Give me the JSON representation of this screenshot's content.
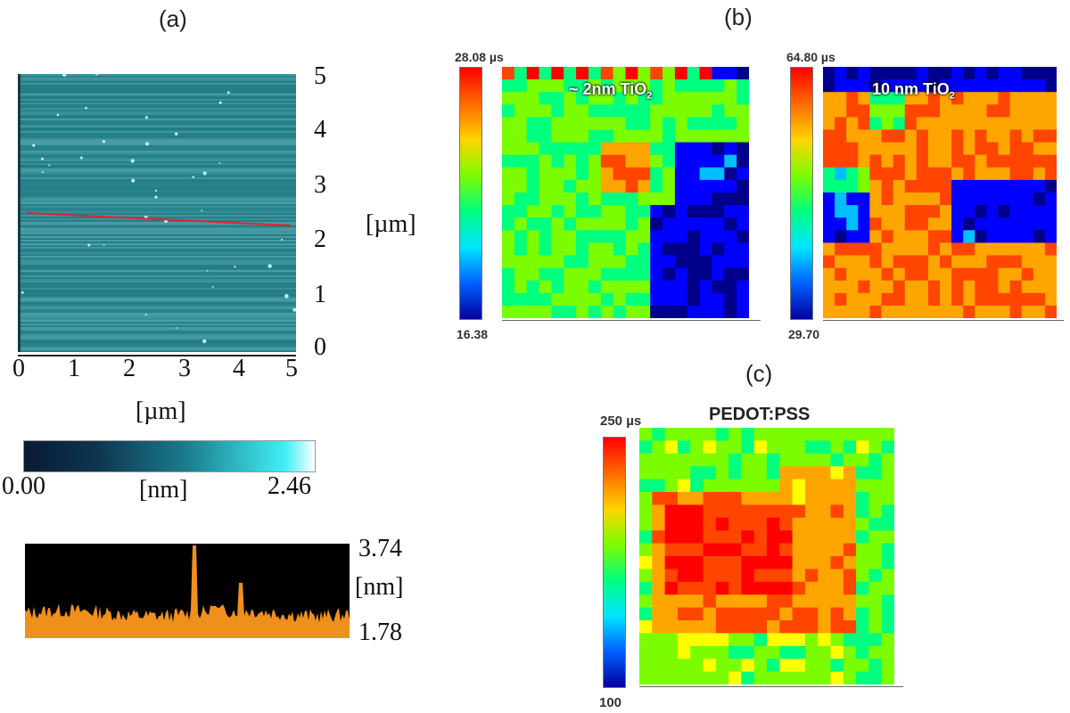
{
  "figure": {
    "panel_a": {
      "label": "(a)",
      "afm_colors": {
        "base": "#2a8a93",
        "speck": "#bfefff"
      },
      "y_ticks": [
        "0",
        "1",
        "2",
        "3",
        "4",
        "5"
      ],
      "x_ticks": [
        "0",
        "1",
        "2",
        "3",
        "4",
        "5"
      ],
      "y_unit": "[µm]",
      "x_unit": "[µm]",
      "colorbar": {
        "min": "0.00",
        "max": "2.46",
        "unit": "[nm]",
        "colors": [
          "#0a1a33",
          "#1a7a8a",
          "#40f0f5",
          "#ffffff"
        ]
      },
      "profile": {
        "max": "3.74",
        "min": "1.78",
        "unit": "[nm]",
        "fill": "#f0901c",
        "background": "#000000"
      }
    },
    "panel_b": {
      "label": "(b)",
      "left_map": {
        "top_value": "28.08 µs",
        "bottom_value": "16.38",
        "title_prefix": "~ 2nm TiO",
        "title_sub": "2"
      },
      "right_map": {
        "top_value": "64.80 µs",
        "bottom_value": "29.70",
        "title_prefix": "10 nm TiO",
        "title_sub": "2"
      }
    },
    "panel_c": {
      "label": "(c)",
      "title": "PEDOT:PSS",
      "top_value": "250 µs",
      "bottom_value": "100"
    },
    "colorscale": [
      "#00008b",
      "#0000ff",
      "#00bfff",
      "#00ff7f",
      "#7cfc00",
      "#ffff00",
      "#ffa500",
      "#ff4500",
      "#ff0000"
    ]
  }
}
